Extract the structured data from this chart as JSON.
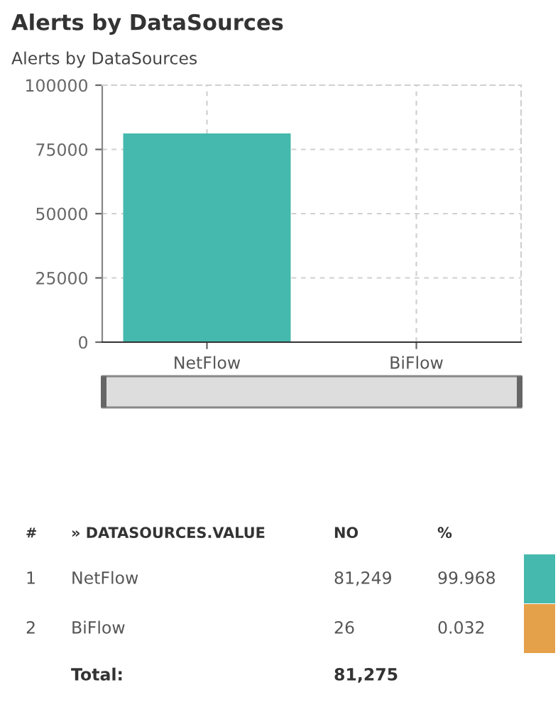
{
  "chart_data": {
    "type": "bar",
    "title": "Alerts by DataSources",
    "subtitle": "Alerts by DataSources",
    "categories": [
      "NetFlow",
      "BiFlow"
    ],
    "values": [
      81249,
      26
    ],
    "colors": [
      "#45b9ad",
      "#e5a04a"
    ],
    "ylim": [
      0,
      100000
    ],
    "yticks": [
      0,
      25000,
      50000,
      75000,
      100000
    ],
    "grid": true,
    "annotations": [
      "#",
      "» DATASOURCES.VALUE",
      "NO",
      "%",
      "1",
      "2",
      "99.968",
      "0.032",
      "Total:",
      "81,275",
      "81,249",
      "26"
    ]
  }
}
